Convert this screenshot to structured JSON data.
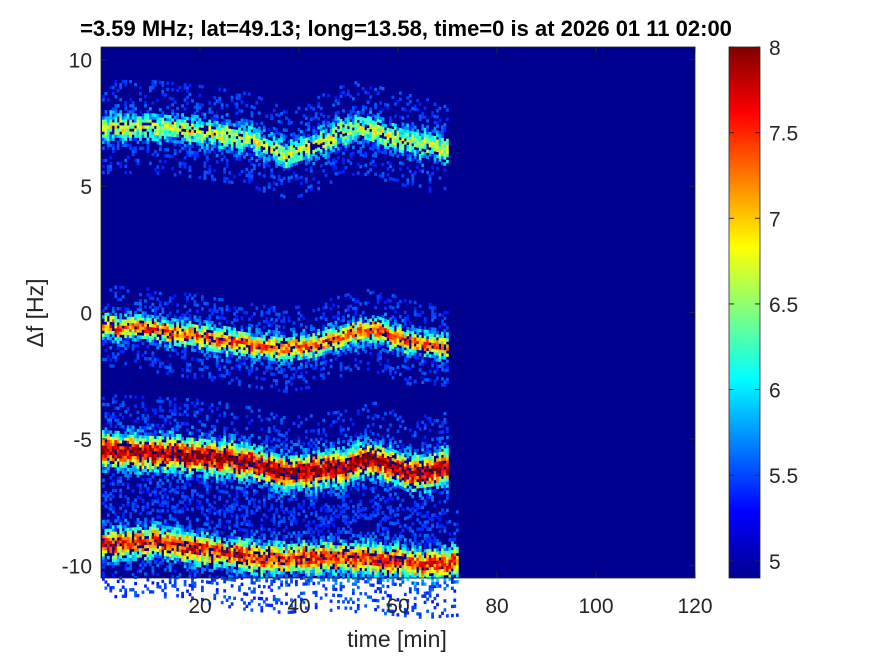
{
  "chart_data": {
    "type": "heatmap",
    "title": "=3.59 MHz;  lat=49.13; long=13.58, time=0 is at 2026 01 11 02:00",
    "xlabel": "time [min]",
    "ylabel": "Δf [Hz]",
    "xlim": [
      0,
      120
    ],
    "ylim": [
      -10.5,
      10.5
    ],
    "x_ticks": [
      20,
      40,
      60,
      80,
      100,
      120
    ],
    "y_ticks": [
      10,
      5,
      0,
      -5,
      -10
    ],
    "x_tick_labels": [
      "20",
      "40",
      "60",
      "80",
      "100",
      "120"
    ],
    "y_tick_labels": [
      "10",
      "5",
      "0",
      "-5",
      "-10"
    ],
    "colorbar": {
      "colormap": "jet",
      "range": [
        4.9,
        8
      ],
      "ticks": [
        5,
        5.5,
        6,
        6.5,
        7,
        7.5,
        8
      ],
      "tick_labels": [
        "5",
        "5.5",
        "6",
        "6.5",
        "7",
        "7.5",
        "8"
      ]
    },
    "background_color": "#00008f",
    "data_end_time": 72,
    "series": [
      {
        "x": [
          0,
          10,
          20,
          30,
          37,
          42,
          47,
          52,
          57,
          63,
          70
        ],
        "y": [
          7.4,
          7.4,
          7.2,
          6.9,
          6.3,
          6.6,
          7.1,
          7.4,
          7.1,
          6.8,
          6.5
        ],
        "peak": 6.6,
        "spread": 0.6
      },
      {
        "x": [
          0,
          10,
          20,
          30,
          37,
          43,
          50,
          55,
          62,
          70
        ],
        "y": [
          -0.5,
          -0.6,
          -0.9,
          -1.2,
          -1.4,
          -1.2,
          -0.8,
          -0.6,
          -1.1,
          -1.3
        ],
        "peak": 7.3,
        "spread": 0.55
      },
      {
        "x": [
          0,
          10,
          20,
          30,
          37,
          43,
          50,
          55,
          62,
          70
        ],
        "y": [
          -5.4,
          -5.5,
          -5.6,
          -5.9,
          -6.3,
          -6.2,
          -6.0,
          -5.7,
          -6.3,
          -6.1
        ],
        "peak": 7.9,
        "spread": 0.75
      },
      {
        "x": [
          0,
          10,
          20,
          30,
          37,
          45,
          55,
          65,
          72
        ],
        "y": [
          -9.1,
          -9.0,
          -9.3,
          -9.6,
          -9.7,
          -9.6,
          -9.7,
          -9.9,
          -9.8
        ],
        "peak": 7.5,
        "spread": 0.7
      }
    ]
  }
}
